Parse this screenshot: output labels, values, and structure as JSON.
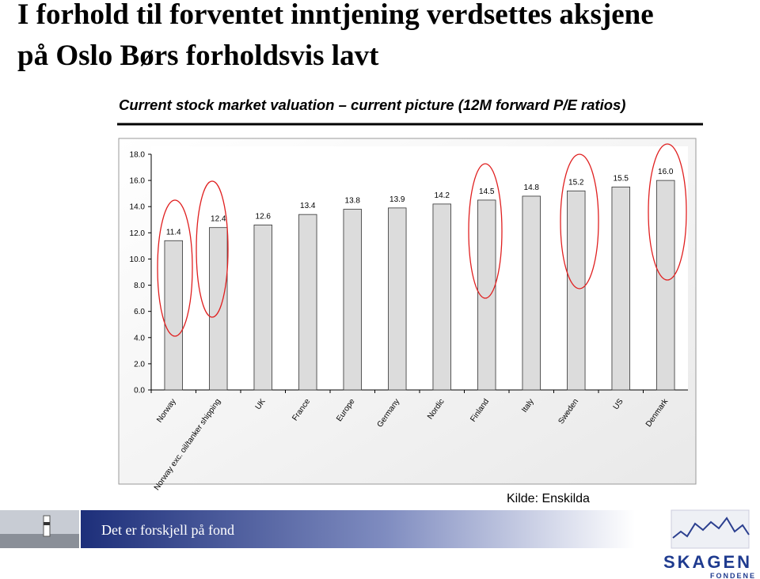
{
  "slide": {
    "title_lines": [
      "I forhold til forventet inntjening verdsettes aksjene",
      "på Oslo Børs forholdsvis lavt"
    ],
    "source": "Kilde: Enskilda",
    "tagline": "Det er forskjell på fond",
    "logo_name": "SKAGEN",
    "logo_sub": "FONDENE"
  },
  "chart_data": {
    "type": "bar",
    "title": "Current stock market valuation – current picture (12M forward P/E ratios)",
    "categories": [
      "Norway",
      "Norway exc. oil/tanker shipping",
      "UK",
      "France",
      "Europe",
      "Germany",
      "Nordic",
      "Finland",
      "Italy",
      "Sweden",
      "US",
      "Denmark"
    ],
    "values": [
      11.4,
      12.4,
      12.6,
      13.4,
      13.8,
      13.9,
      14.2,
      14.5,
      14.8,
      15.2,
      15.5,
      16.0
    ],
    "value_labels": [
      "11.4",
      "12.4",
      "12.6",
      "13.4",
      "13.8",
      "13.9",
      "14.2",
      "14.5",
      "14.8",
      "15.2",
      "15.5",
      "16.0"
    ],
    "color": "#dcdcdc",
    "ylim": [
      0,
      18
    ],
    "yticks": [
      {
        "value": 0,
        "label": "0.0"
      },
      {
        "value": 2,
        "label": "2.0"
      },
      {
        "value": 4,
        "label": "4.0"
      },
      {
        "value": 6,
        "label": "6.0"
      },
      {
        "value": 8,
        "label": "8.0"
      },
      {
        "value": 10,
        "label": "10.0"
      },
      {
        "value": 12,
        "label": "12.0"
      },
      {
        "value": 14,
        "label": "14.0"
      },
      {
        "value": 16,
        "label": "16.0"
      },
      {
        "value": 18,
        "label": "18.0"
      }
    ],
    "grid": false
  }
}
